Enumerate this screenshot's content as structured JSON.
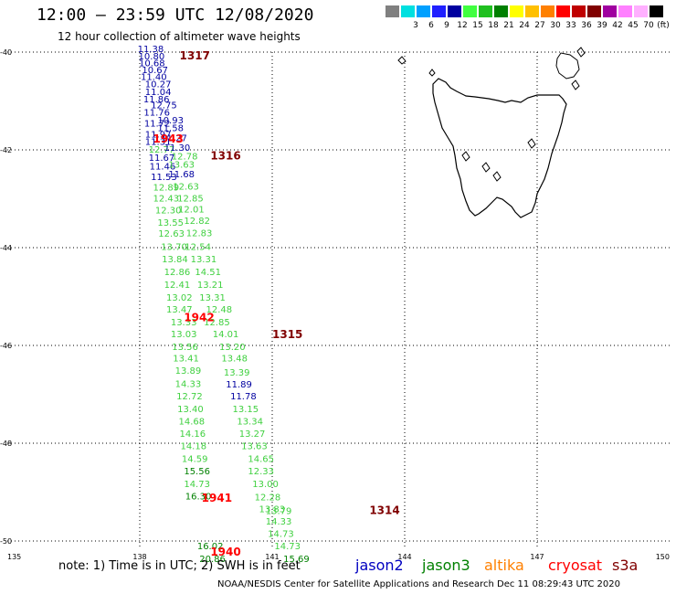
{
  "header": {
    "title": "12:00 – 23:59 UTC 12/08/2020",
    "subtitle": "12 hour collection of altimeter wave heights"
  },
  "scale": {
    "unit": "(ft)",
    "bins": [
      {
        "color": "#808080",
        "label": ""
      },
      {
        "color": "#00e0e0",
        "label": "3"
      },
      {
        "color": "#00a0ff",
        "label": "6"
      },
      {
        "color": "#2020ff",
        "label": "9"
      },
      {
        "color": "#0000a0",
        "label": "12"
      },
      {
        "color": "#40ff40",
        "label": "15"
      },
      {
        "color": "#20c020",
        "label": "18"
      },
      {
        "color": "#008000",
        "label": "21"
      },
      {
        "color": "#ffff00",
        "label": "24"
      },
      {
        "color": "#ffc000",
        "label": "27"
      },
      {
        "color": "#ff8000",
        "label": "30"
      },
      {
        "color": "#ff0000",
        "label": "33"
      },
      {
        "color": "#c00000",
        "label": "36"
      },
      {
        "color": "#800000",
        "label": "39"
      },
      {
        "color": "#a000a0",
        "label": "42"
      },
      {
        "color": "#ff80ff",
        "label": "45"
      },
      {
        "color": "#ffb0ff",
        "label": "70"
      },
      {
        "color": "#000000",
        "label": ""
      }
    ]
  },
  "map": {
    "lon_range": [
      135,
      150
    ],
    "lat_range": [
      -50.5,
      -39.6
    ],
    "lat_ticks": [
      {
        "value": -40,
        "label": "-40"
      },
      {
        "value": -42,
        "label": "-42"
      },
      {
        "value": -44,
        "label": "-44"
      },
      {
        "value": -46,
        "label": "-46"
      },
      {
        "value": -48,
        "label": "-48"
      },
      {
        "value": -50,
        "label": "-50"
      }
    ],
    "lon_ticks": [
      {
        "value": 135,
        "label": "135"
      },
      {
        "value": 138,
        "label": "138"
      },
      {
        "value": 141,
        "label": "141"
      },
      {
        "value": 144,
        "label": "144"
      },
      {
        "value": 147,
        "label": "147"
      },
      {
        "value": 150,
        "label": "150"
      }
    ],
    "colors": {
      "blue": "#0000a0",
      "lightgreen": "#40d040",
      "green": "#008000",
      "red": "#ff0000",
      "darkred": "#800000"
    },
    "time_labels": [
      {
        "text": "1317",
        "lon": 138.9,
        "lat": -40.15,
        "color": "#800000"
      },
      {
        "text": "1943",
        "lon": 138.3,
        "lat": -41.85,
        "color": "#ff0000"
      },
      {
        "text": "1316",
        "lon": 139.6,
        "lat": -42.2,
        "color": "#800000"
      },
      {
        "text": "1942",
        "lon": 139.0,
        "lat": -45.5,
        "color": "#ff0000"
      },
      {
        "text": "1315",
        "lon": 141.0,
        "lat": -45.85,
        "color": "#800000"
      },
      {
        "text": "1941",
        "lon": 139.4,
        "lat": -49.2,
        "color": "#ff0000"
      },
      {
        "text": "1314",
        "lon": 143.2,
        "lat": -49.45,
        "color": "#800000"
      },
      {
        "text": "1940",
        "lon": 139.6,
        "lat": -50.3,
        "color": "#ff0000"
      }
    ],
    "points": [
      {
        "text": "11.38",
        "lon": 137.95,
        "lat": -40.0,
        "c": "blue"
      },
      {
        "text": "10.80",
        "lon": 137.97,
        "lat": -40.15,
        "c": "blue"
      },
      {
        "text": "10.68",
        "lon": 137.98,
        "lat": -40.29,
        "c": "blue"
      },
      {
        "text": "10.67",
        "lon": 138.05,
        "lat": -40.43,
        "c": "blue"
      },
      {
        "text": "11.40",
        "lon": 138.02,
        "lat": -40.57,
        "c": "blue"
      },
      {
        "text": "10.27",
        "lon": 138.12,
        "lat": -40.72,
        "c": "blue"
      },
      {
        "text": "11.04",
        "lon": 138.12,
        "lat": -40.88,
        "c": "blue"
      },
      {
        "text": "11.86",
        "lon": 138.08,
        "lat": -41.03,
        "c": "blue"
      },
      {
        "text": "12.75",
        "lon": 138.25,
        "lat": -41.15,
        "c": "blue"
      },
      {
        "text": "11.76",
        "lon": 138.09,
        "lat": -41.3,
        "c": "blue"
      },
      {
        "text": "10.93",
        "lon": 138.4,
        "lat": -41.46,
        "c": "blue"
      },
      {
        "text": "11.72",
        "lon": 138.1,
        "lat": -41.52,
        "c": "blue"
      },
      {
        "text": "11.58",
        "lon": 138.4,
        "lat": -41.62,
        "c": "blue"
      },
      {
        "text": "11.97",
        "lon": 138.12,
        "lat": -41.75,
        "c": "blue"
      },
      {
        "text": "11.27",
        "lon": 138.48,
        "lat": -41.82,
        "c": "blue"
      },
      {
        "text": "11.31",
        "lon": 138.12,
        "lat": -41.9,
        "c": "blue"
      },
      {
        "text": "12.77",
        "lon": 138.2,
        "lat": -42.06,
        "c": "lightgreen"
      },
      {
        "text": "11.30",
        "lon": 138.55,
        "lat": -42.02,
        "c": "blue"
      },
      {
        "text": "11.67",
        "lon": 138.2,
        "lat": -42.22,
        "c": "blue"
      },
      {
        "text": "12.78",
        "lon": 138.72,
        "lat": -42.2,
        "c": "lightgreen"
      },
      {
        "text": "11.46",
        "lon": 138.22,
        "lat": -42.4,
        "c": "blue"
      },
      {
        "text": "13.63",
        "lon": 138.65,
        "lat": -42.36,
        "c": "lightgreen"
      },
      {
        "text": "11.53",
        "lon": 138.25,
        "lat": -42.62,
        "c": "blue"
      },
      {
        "text": "11.68",
        "lon": 138.65,
        "lat": -42.56,
        "c": "blue"
      },
      {
        "text": "12.89",
        "lon": 138.3,
        "lat": -42.83,
        "c": "lightgreen"
      },
      {
        "text": "12.63",
        "lon": 138.75,
        "lat": -42.81,
        "c": "lightgreen"
      },
      {
        "text": "12.43",
        "lon": 138.3,
        "lat": -43.06,
        "c": "lightgreen"
      },
      {
        "text": "12.85",
        "lon": 138.85,
        "lat": -43.06,
        "c": "lightgreen"
      },
      {
        "text": "12.30",
        "lon": 138.35,
        "lat": -43.3,
        "c": "lightgreen"
      },
      {
        "text": "12.01",
        "lon": 138.87,
        "lat": -43.28,
        "c": "lightgreen"
      },
      {
        "text": "13.55",
        "lon": 138.4,
        "lat": -43.55,
        "c": "lightgreen"
      },
      {
        "text": "12.82",
        "lon": 139.0,
        "lat": -43.51,
        "c": "lightgreen"
      },
      {
        "text": "12.63",
        "lon": 138.42,
        "lat": -43.78,
        "c": "lightgreen"
      },
      {
        "text": "12.83",
        "lon": 139.05,
        "lat": -43.77,
        "c": "lightgreen"
      },
      {
        "text": "13.70",
        "lon": 138.48,
        "lat": -44.05,
        "c": "lightgreen"
      },
      {
        "text": "12.54",
        "lon": 139.02,
        "lat": -44.05,
        "c": "lightgreen"
      },
      {
        "text": "13.84",
        "lon": 138.5,
        "lat": -44.3,
        "c": "lightgreen"
      },
      {
        "text": "13.31",
        "lon": 139.15,
        "lat": -44.3,
        "c": "lightgreen"
      },
      {
        "text": "12.86",
        "lon": 138.55,
        "lat": -44.56,
        "c": "lightgreen"
      },
      {
        "text": "14.51",
        "lon": 139.25,
        "lat": -44.56,
        "c": "lightgreen"
      },
      {
        "text": "12.41",
        "lon": 138.55,
        "lat": -44.82,
        "c": "lightgreen"
      },
      {
        "text": "13.21",
        "lon": 139.3,
        "lat": -44.82,
        "c": "lightgreen"
      },
      {
        "text": "13.02",
        "lon": 138.6,
        "lat": -45.08,
        "c": "lightgreen"
      },
      {
        "text": "13.31",
        "lon": 139.35,
        "lat": -45.08,
        "c": "lightgreen"
      },
      {
        "text": "13.47",
        "lon": 138.6,
        "lat": -45.33,
        "c": "lightgreen"
      },
      {
        "text": "12.48",
        "lon": 139.5,
        "lat": -45.33,
        "c": "lightgreen"
      },
      {
        "text": "13.33",
        "lon": 138.7,
        "lat": -45.59,
        "c": "lightgreen"
      },
      {
        "text": "12.85",
        "lon": 139.45,
        "lat": -45.59,
        "c": "lightgreen"
      },
      {
        "text": "13.03",
        "lon": 138.7,
        "lat": -45.83,
        "c": "lightgreen"
      },
      {
        "text": "14.01",
        "lon": 139.65,
        "lat": -45.83,
        "c": "lightgreen"
      },
      {
        "text": "13.56",
        "lon": 138.73,
        "lat": -46.09,
        "c": "lightgreen"
      },
      {
        "text": "13.20",
        "lon": 139.8,
        "lat": -46.09,
        "c": "lightgreen"
      },
      {
        "text": "13.41",
        "lon": 138.75,
        "lat": -46.33,
        "c": "lightgreen"
      },
      {
        "text": "13.48",
        "lon": 139.85,
        "lat": -46.33,
        "c": "lightgreen"
      },
      {
        "text": "13.89",
        "lon": 138.8,
        "lat": -46.58,
        "c": "lightgreen"
      },
      {
        "text": "13.39",
        "lon": 139.9,
        "lat": -46.62,
        "c": "lightgreen"
      },
      {
        "text": "14.33",
        "lon": 138.8,
        "lat": -46.85,
        "c": "lightgreen"
      },
      {
        "text": "11.89",
        "lon": 139.95,
        "lat": -46.86,
        "c": "blue"
      },
      {
        "text": "12.72",
        "lon": 138.83,
        "lat": -47.1,
        "c": "lightgreen"
      },
      {
        "text": "11.78",
        "lon": 140.05,
        "lat": -47.1,
        "c": "blue"
      },
      {
        "text": "13.40",
        "lon": 138.85,
        "lat": -47.36,
        "c": "lightgreen"
      },
      {
        "text": "13.15",
        "lon": 140.1,
        "lat": -47.36,
        "c": "lightgreen"
      },
      {
        "text": "14.68",
        "lon": 138.88,
        "lat": -47.62,
        "c": "lightgreen"
      },
      {
        "text": "13.34",
        "lon": 140.2,
        "lat": -47.62,
        "c": "lightgreen"
      },
      {
        "text": "14.16",
        "lon": 138.9,
        "lat": -47.87,
        "c": "lightgreen"
      },
      {
        "text": "13.27",
        "lon": 140.25,
        "lat": -47.87,
        "c": "lightgreen"
      },
      {
        "text": "14.18",
        "lon": 138.92,
        "lat": -48.12,
        "c": "lightgreen"
      },
      {
        "text": "13.63",
        "lon": 140.3,
        "lat": -48.12,
        "c": "lightgreen"
      },
      {
        "text": "14.59",
        "lon": 138.95,
        "lat": -48.38,
        "c": "lightgreen"
      },
      {
        "text": "14.65",
        "lon": 140.45,
        "lat": -48.38,
        "c": "lightgreen"
      },
      {
        "text": "15.56",
        "lon": 139.0,
        "lat": -48.64,
        "c": "green"
      },
      {
        "text": "12.33",
        "lon": 140.45,
        "lat": -48.64,
        "c": "lightgreen"
      },
      {
        "text": "14.73",
        "lon": 139.0,
        "lat": -48.9,
        "c": "lightgreen"
      },
      {
        "text": "13.00",
        "lon": 140.55,
        "lat": -48.9,
        "c": "lightgreen"
      },
      {
        "text": "16.30",
        "lon": 139.03,
        "lat": -49.15,
        "c": "green"
      },
      {
        "text": "12.28",
        "lon": 140.6,
        "lat": -49.17,
        "c": "lightgreen"
      },
      {
        "text": "13.83",
        "lon": 140.7,
        "lat": -49.41,
        "c": "lightgreen"
      },
      {
        "text": "13.79",
        "lon": 140.85,
        "lat": -49.45,
        "c": "lightgreen"
      },
      {
        "text": "14.33",
        "lon": 140.85,
        "lat": -49.66,
        "c": "lightgreen"
      },
      {
        "text": "14.73",
        "lon": 140.9,
        "lat": -49.92,
        "c": "lightgreen"
      },
      {
        "text": "16.02",
        "lon": 139.3,
        "lat": -50.17,
        "c": "green"
      },
      {
        "text": "14.73",
        "lon": 141.05,
        "lat": -50.17,
        "c": "lightgreen"
      },
      {
        "text": "20.86",
        "lon": 139.35,
        "lat": -50.43,
        "c": "green"
      },
      {
        "text": "15.69",
        "lon": 141.25,
        "lat": -50.43,
        "c": "green"
      }
    ]
  },
  "note": "note: 1) Time is in UTC; 2) SWH is in feet",
  "legend": [
    {
      "name": "jason2",
      "color": "#0000c0"
    },
    {
      "name": "jason3",
      "color": "#008000"
    },
    {
      "name": "altika",
      "color": "#ff8000"
    },
    {
      "name": "cryosat",
      "color": "#ff0000"
    },
    {
      "name": "s3a",
      "color": "#800000"
    }
  ],
  "footer": "NOAA/NESDIS Center for Satellite Applications and Research    Dec 11 08:29:43 UTC 2020"
}
